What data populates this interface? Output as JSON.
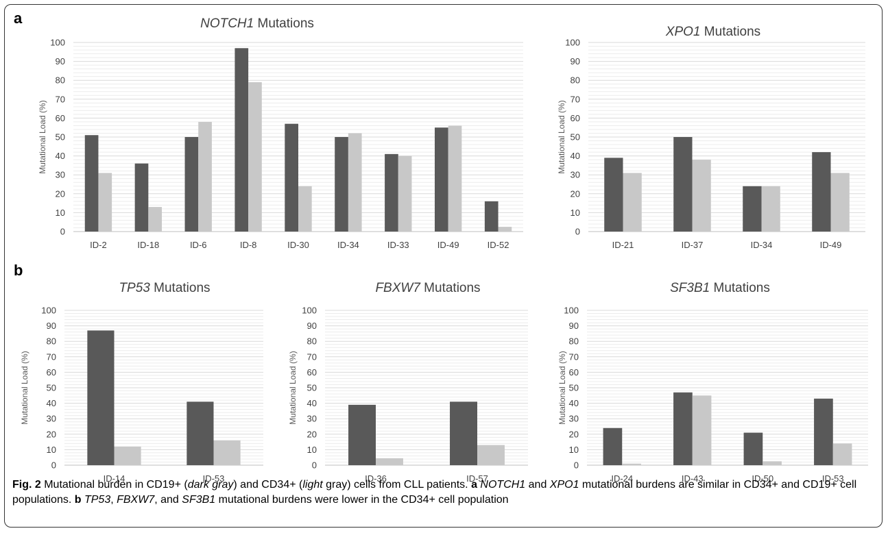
{
  "panels": {
    "a": "a",
    "b": "b"
  },
  "colors": {
    "cd19": "#595959",
    "cd34": "#c8c8c8"
  },
  "chart_data": [
    {
      "id": "notch1",
      "type": "bar",
      "title_gene": "NOTCH1",
      "title_rest": " Mutations",
      "ylabel": "Mutational Load (%)",
      "ylim": [
        0,
        100
      ],
      "yticks": [
        0,
        10,
        20,
        30,
        40,
        50,
        60,
        70,
        80,
        90,
        100
      ],
      "categories": [
        "ID-2",
        "ID-18",
        "ID-6",
        "ID-8",
        "ID-30",
        "ID-34",
        "ID-33",
        "ID-49",
        "ID-52"
      ],
      "series": [
        {
          "values": [
            51,
            36,
            50,
            97,
            57,
            50,
            41,
            55,
            16
          ]
        },
        {
          "values": [
            31,
            13,
            58,
            79,
            24,
            52,
            40,
            56,
            2.5
          ]
        }
      ]
    },
    {
      "id": "xpo1",
      "type": "bar",
      "title_gene": "XPO1",
      "title_rest": " Mutations",
      "ylabel": "Mutational Load (%)",
      "ylim": [
        0,
        100
      ],
      "yticks": [
        0,
        10,
        20,
        30,
        40,
        50,
        60,
        70,
        80,
        90,
        100
      ],
      "categories": [
        "ID-21",
        "ID-37",
        "ID-34",
        "ID-49"
      ],
      "series": [
        {
          "values": [
            39,
            50,
            24,
            42
          ]
        },
        {
          "values": [
            31,
            38,
            24,
            31
          ]
        }
      ]
    },
    {
      "id": "tp53",
      "type": "bar",
      "title_gene": "TP53",
      "title_rest": " Mutations",
      "ylabel": "Mutational Load (%)",
      "ylim": [
        0,
        100
      ],
      "yticks": [
        0,
        10,
        20,
        30,
        40,
        50,
        60,
        70,
        80,
        90,
        100
      ],
      "categories": [
        "ID-14",
        "ID-53"
      ],
      "series": [
        {
          "values": [
            87,
            41
          ]
        },
        {
          "values": [
            12,
            16
          ]
        }
      ]
    },
    {
      "id": "fbxw7",
      "type": "bar",
      "title_gene": "FBXW7",
      "title_rest": " Mutations",
      "ylabel": "Mutational Load (%)",
      "ylim": [
        0,
        100
      ],
      "yticks": [
        0,
        10,
        20,
        30,
        40,
        50,
        60,
        70,
        80,
        90,
        100
      ],
      "categories": [
        "ID-36",
        "ID-57"
      ],
      "series": [
        {
          "values": [
            39,
            41
          ]
        },
        {
          "values": [
            4.5,
            13
          ]
        }
      ]
    },
    {
      "id": "sf3b1",
      "type": "bar",
      "title_gene": "SF3B1",
      "title_rest": " Mutations",
      "ylabel": "Mutational Load (%)",
      "ylim": [
        0,
        100
      ],
      "yticks": [
        0,
        10,
        20,
        30,
        40,
        50,
        60,
        70,
        80,
        90,
        100
      ],
      "categories": [
        "ID-24",
        "ID-43",
        "ID-50",
        "ID-53"
      ],
      "series": [
        {
          "values": [
            24,
            47,
            21,
            43
          ]
        },
        {
          "values": [
            1,
            45,
            2.5,
            14
          ]
        }
      ]
    }
  ],
  "caption": {
    "fig": "Fig. 2",
    "t1": " Mutational burden in CD19+ (",
    "dark": "dark gray",
    "t2": ") and CD34+ (",
    "light": "light",
    "t3": " gray) cells from CLL patients. ",
    "a": "a",
    "t4": " ",
    "notch1": "NOTCH1",
    "t5": " and ",
    "xpo1": "XPO1",
    "t6": " mutational burdens are similar in CD34+ and CD19+ cell populations. ",
    "b": "b",
    "t7": " ",
    "tp53": "TP53",
    "t8": ", ",
    "fbxw7": "FBXW7",
    "t9": ", and ",
    "sf3b1": "SF3B1",
    "t10": " mutational burdens were lower in the CD34+ cell population"
  }
}
